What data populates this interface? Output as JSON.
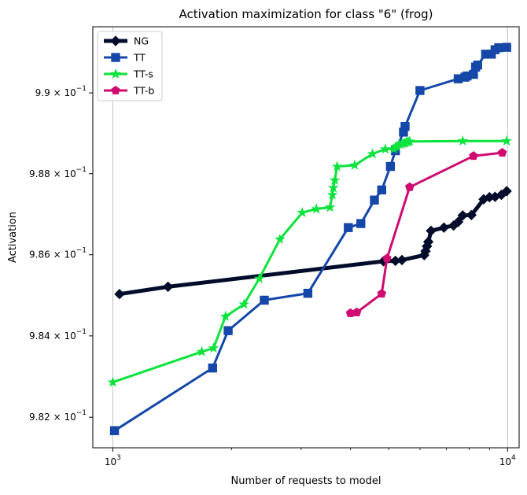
{
  "chart_data": {
    "type": "line",
    "title": "Activation maximization for class \"6\" (frog)",
    "xlabel": "Number of requests to model",
    "ylabel": "Activation",
    "xscale": "log",
    "yscale": "log",
    "xlim": [
      890,
      10700
    ],
    "ylim": [
      0.98125,
      0.99164
    ],
    "x_tick_labels": [
      {
        "value": 1000,
        "base": "10",
        "exp": "3"
      },
      {
        "value": 10000,
        "base": "10",
        "exp": "4"
      }
    ],
    "y_tick_labels": [
      {
        "value": 0.982,
        "mant": "9.82",
        "base": "10",
        "exp": "−1"
      },
      {
        "value": 0.984,
        "mant": "9.84",
        "base": "10",
        "exp": "−1"
      },
      {
        "value": 0.986,
        "mant": "9.86",
        "base": "10",
        "exp": "−1"
      },
      {
        "value": 0.988,
        "mant": "9.88",
        "base": "10",
        "exp": "−1"
      },
      {
        "value": 0.99,
        "mant": "9.9",
        "base": "10",
        "exp": "−1"
      }
    ],
    "grid": "vertical-major",
    "legend_position": "upper-left",
    "series": [
      {
        "name": "NG",
        "color": "#000c2a",
        "marker": "diamond",
        "linewidth": 5,
        "x": [
          1040,
          1380,
          4850,
          5200,
          5400,
          6150,
          6200,
          6250,
          6300,
          6400,
          6900,
          7300,
          7500,
          7700,
          8100,
          8700,
          9000,
          9300,
          9650,
          9950
        ],
        "y": [
          0.98503,
          0.98521,
          0.98584,
          0.98585,
          0.98587,
          0.98599,
          0.98609,
          0.98621,
          0.98632,
          0.98659,
          0.98667,
          0.98672,
          0.98681,
          0.98697,
          0.98698,
          0.98737,
          0.98742,
          0.98743,
          0.98748,
          0.98757
        ]
      },
      {
        "name": "TT",
        "color": "#1447a8",
        "marker": "square",
        "linewidth": 3,
        "x": [
          1010,
          1790,
          1960,
          2420,
          3120,
          3950,
          4250,
          4600,
          4800,
          5050,
          5200,
          5450,
          5500,
          6000,
          7500,
          7800,
          7900,
          8200,
          8300,
          8400,
          8800,
          9100,
          9300,
          9500,
          9950
        ],
        "y": [
          0.98167,
          0.98321,
          0.98413,
          0.98488,
          0.98505,
          0.98667,
          0.98677,
          0.98735,
          0.9876,
          0.98818,
          0.98857,
          0.98903,
          0.98917,
          0.99006,
          0.99035,
          0.99039,
          0.99042,
          0.99046,
          0.99064,
          0.99069,
          0.99096,
          0.99096,
          0.99107,
          0.99112,
          0.99113
        ]
      },
      {
        "name": "TT-s",
        "color": "#0de33d",
        "marker": "star",
        "linewidth": 3,
        "x": [
          1000,
          1680,
          1800,
          1930,
          2150,
          2350,
          2650,
          3020,
          3280,
          3550,
          3600,
          3620,
          3650,
          3700,
          4100,
          4550,
          4900,
          5150,
          5200,
          5250,
          5330,
          5400,
          5450,
          5500,
          5550,
          5600,
          5650,
          7700,
          9950
        ],
        "y": [
          0.98286,
          0.98361,
          0.9837,
          0.98448,
          0.98478,
          0.98541,
          0.98638,
          0.98704,
          0.98713,
          0.98717,
          0.98748,
          0.98765,
          0.98784,
          0.98818,
          0.98821,
          0.98849,
          0.98861,
          0.98861,
          0.98866,
          0.98868,
          0.98872,
          0.98874,
          0.98875,
          0.98876,
          0.98878,
          0.98879,
          0.9888,
          0.98881,
          0.98881
        ]
      },
      {
        "name": "TT-b",
        "color": "#cf0a70",
        "marker": "pentagon",
        "linewidth": 3,
        "x": [
          4000,
          4150,
          4800,
          4950,
          5650,
          8200,
          9700
        ],
        "y": [
          0.98456,
          0.98458,
          0.98504,
          0.98591,
          0.98767,
          0.98844,
          0.98852
        ]
      }
    ]
  }
}
